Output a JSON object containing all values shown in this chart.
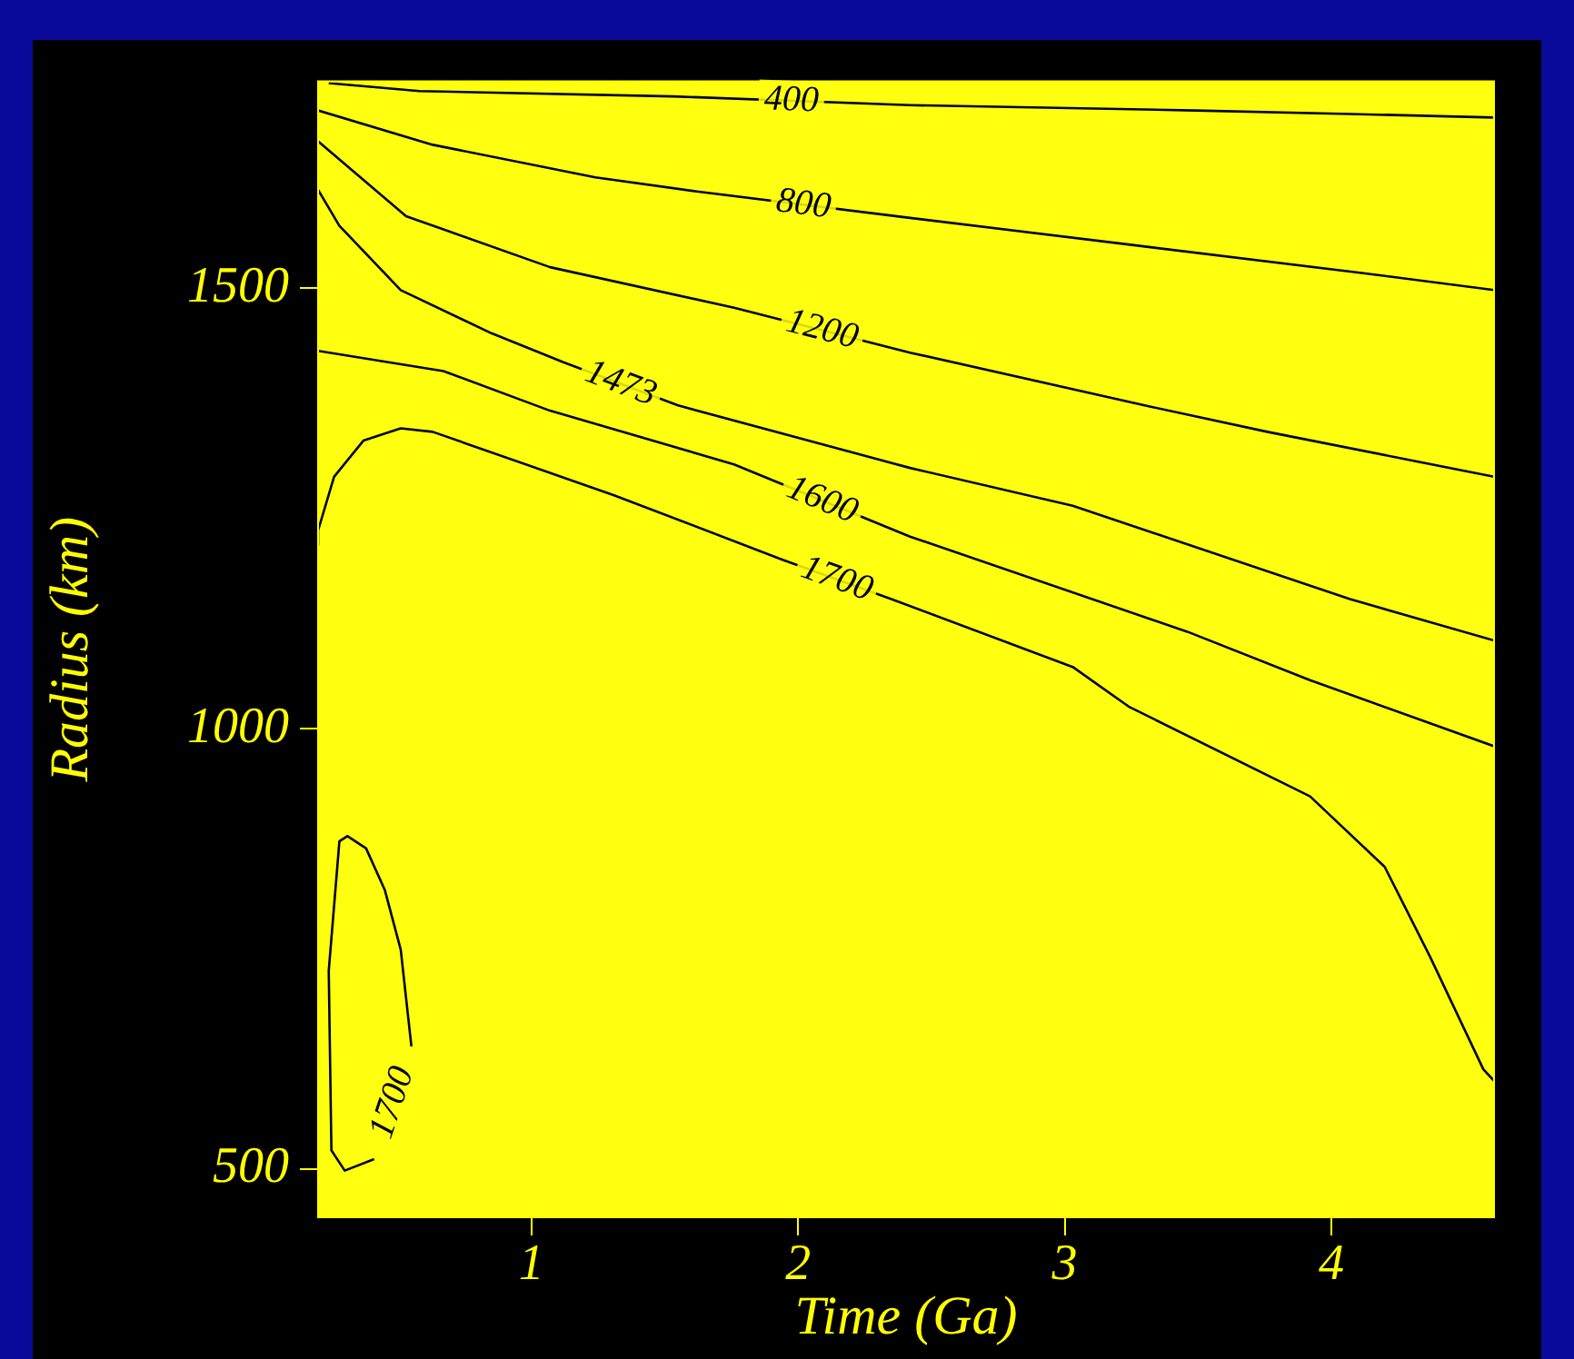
{
  "chart_data": {
    "type": "line",
    "xlabel": "Time (Ga)",
    "ylabel": "Radius (km)",
    "xlim": [
      0.2,
      4.61
    ],
    "ylim": [
      445,
      1735
    ],
    "xticks": [
      1,
      2,
      3,
      4
    ],
    "yticks": [
      500,
      1000,
      1500
    ],
    "grid": false,
    "legend": false,
    "marker": "none",
    "line_style": "solid",
    "series": [
      {
        "name": "400",
        "color": "#000000",
        "x": [
          0.24,
          0.58,
          1.53,
          2.42,
          3.49,
          4.07,
          4.61
        ],
        "values": [
          1733,
          1724,
          1718,
          1708,
          1702,
          1698,
          1694
        ]
      },
      {
        "name": "800",
        "color": "#000000",
        "x": [
          0.2,
          0.63,
          1.24,
          1.62,
          2.42,
          3.26,
          4.1,
          4.61
        ],
        "values": [
          1702,
          1663,
          1626,
          1610,
          1580,
          1549,
          1518,
          1498
        ]
      },
      {
        "name": "1200",
        "color": "#000000",
        "x": [
          0.2,
          0.53,
          1.07,
          1.76,
          2.42,
          3.3,
          3.76,
          4.61
        ],
        "values": [
          1667,
          1582,
          1524,
          1478,
          1427,
          1367,
          1337,
          1286
        ]
      },
      {
        "name": "1473",
        "color": "#000000",
        "x": [
          0.2,
          0.28,
          0.51,
          0.85,
          1.12,
          1.55,
          2.42,
          3.03,
          4.07,
          4.61
        ],
        "values": [
          1612,
          1571,
          1498,
          1449,
          1416,
          1367,
          1296,
          1253,
          1147,
          1100
        ]
      },
      {
        "name": "1600",
        "color": "#000000",
        "x": [
          0.2,
          0.67,
          1.07,
          1.76,
          2.42,
          3.46,
          3.92,
          4.61
        ],
        "values": [
          1429,
          1406,
          1361,
          1300,
          1218,
          1110,
          1055,
          980
        ]
      },
      {
        "name": "1700",
        "color": "#000000",
        "x": [
          0.2,
          0.2,
          0.26,
          0.37,
          0.51,
          0.63,
          1.31,
          1.94,
          2.35,
          3.03,
          3.24,
          3.92,
          4.2,
          4.37,
          4.57,
          4.61
        ],
        "values": [
          1208,
          1225,
          1286,
          1327,
          1341,
          1337,
          1265,
          1192,
          1147,
          1070,
          1025,
          923,
          843,
          741,
          613,
          600
        ]
      },
      {
        "name": "1700",
        "color": "#000000",
        "x": [
          0.55,
          0.51,
          0.45,
          0.38,
          0.31,
          0.28,
          0.24,
          0.25,
          0.3,
          0.41
        ],
        "values": [
          639,
          749,
          817,
          864,
          878,
          872,
          725,
          521,
          498,
          511
        ]
      }
    ]
  }
}
